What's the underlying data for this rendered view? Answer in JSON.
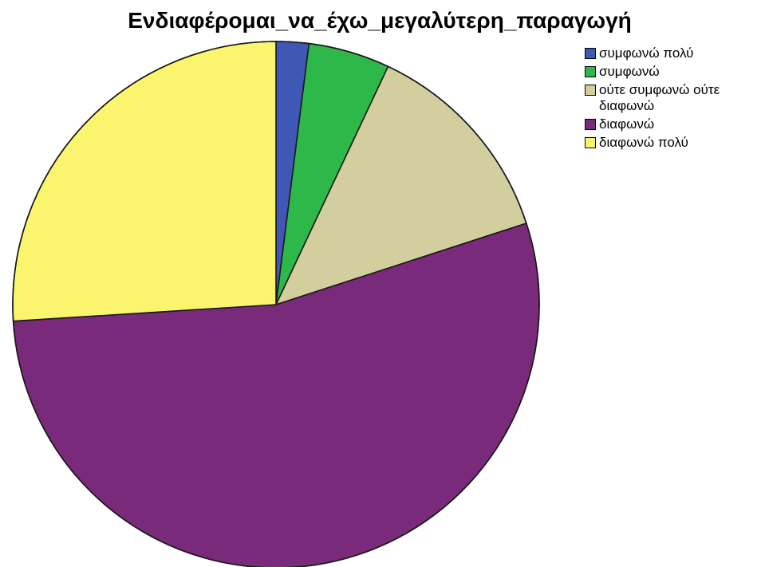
{
  "chart_data": {
    "type": "pie",
    "title": "Ενδιαφέρομαι_να_έχω_μεγαλύτερη_παραγωγή",
    "series": [
      {
        "name": "συμφωνώ πολύ",
        "value": 2.0,
        "color": "#3F57B5"
      },
      {
        "name": "συμφωνώ",
        "value": 5.0,
        "color": "#2EB84A"
      },
      {
        "name": "ούτε συμφωνώ ούτε διαφωνώ",
        "value": 13.0,
        "color": "#D3CE9E"
      },
      {
        "name": "διαφωνώ",
        "value": 54.0,
        "color": "#7A2A7A"
      },
      {
        "name": "διαφωνώ πολύ",
        "value": 26.0,
        "color": "#FBF56E"
      }
    ],
    "legend_placement": "top-right"
  }
}
